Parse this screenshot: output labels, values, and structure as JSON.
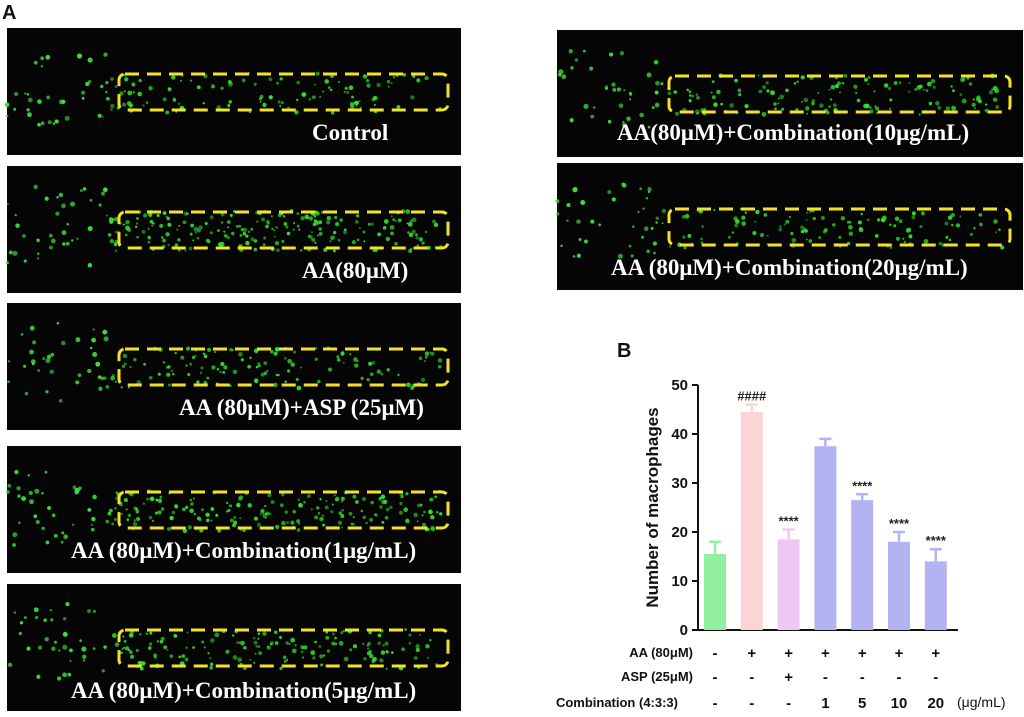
{
  "panel_a_label": "A",
  "panel_b_label": "B",
  "images": [
    {
      "caption": "Control",
      "density": 0.35,
      "box_color": "#f2e32a"
    },
    {
      "caption": "AA(80μM)",
      "density": 1.0,
      "box_color": "#f2e32a"
    },
    {
      "caption": "AA (80μM)+ASP (25μM)",
      "density": 0.4,
      "box_color": "#f2e32a"
    },
    {
      "caption": "AA (80μM)+Combination(1μg/mL)",
      "density": 0.85,
      "box_color": "#f2e32a"
    },
    {
      "caption": "AA (80μM)+Combination(5μg/mL)",
      "density": 0.6,
      "box_color": "#f2e32a"
    },
    {
      "caption": "AA(80μM)+Combination(10μg/mL)",
      "density": 0.5,
      "box_color": "#f2e32a"
    },
    {
      "caption": "AA (80μM)+Combination(20μg/mL)",
      "density": 0.35,
      "box_color": "#f2e32a"
    }
  ],
  "chart_data": {
    "type": "bar",
    "ylabel": "Number of macrophages",
    "ylim": [
      0,
      50
    ],
    "yticks": [
      0,
      10,
      20,
      30,
      40,
      50
    ],
    "grid": false,
    "values": [
      15.5,
      44.5,
      18.5,
      37.5,
      26.5,
      18.0,
      14.0
    ],
    "errors": [
      2.5,
      1.5,
      2.0,
      1.5,
      1.2,
      2.0,
      2.5
    ],
    "colors": [
      "#90f0a0",
      "#fbd4d6",
      "#eec8f2",
      "#b3b3f2",
      "#b3b3f2",
      "#b3b3f2",
      "#b3b3f2"
    ],
    "significance": [
      "",
      "####",
      "****",
      "",
      "****",
      "****",
      "****"
    ],
    "treatment_table": {
      "rows": [
        {
          "label": "AA (80μM)",
          "values": [
            "-",
            "+",
            "+",
            "+",
            "+",
            "+",
            "+"
          ]
        },
        {
          "label": "ASP (25μM)",
          "values": [
            "-",
            "-",
            "+",
            "-",
            "-",
            "-",
            "-"
          ]
        },
        {
          "label": "Combination (4:3:3)",
          "values": [
            "-",
            "-",
            "-",
            "1",
            "5",
            "10",
            "20"
          ],
          "unit": "(μg/mL)"
        }
      ]
    }
  }
}
